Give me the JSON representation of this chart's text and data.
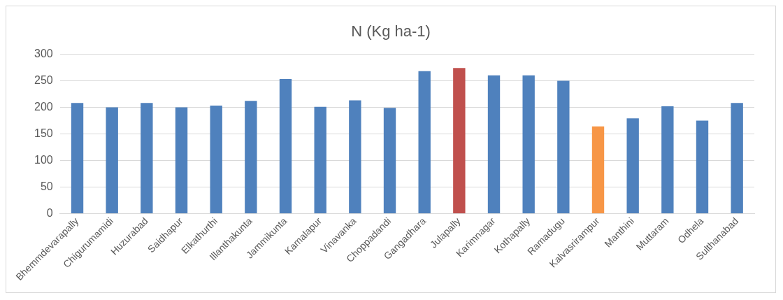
{
  "chart_data": {
    "type": "bar",
    "title": "N (Kg ha-1)",
    "categories": [
      "Bhemmdevarapally",
      "Chigurumamidi",
      "Huzurabad",
      "Saidhapur",
      "Elkathurthi",
      "Illanthakunta",
      "Jammikunta",
      "Kamalapur",
      "Vinavanka",
      "Choppadandi",
      "Gangadhara",
      "Julapally",
      "Karimnagar",
      "Kothapally",
      "Ramadugu",
      "Kalvasrirampur",
      "Manthini",
      "Muttaram",
      "Odhela",
      "Sulthanabad"
    ],
    "values": [
      208,
      200,
      208,
      200,
      203,
      212,
      253,
      201,
      213,
      199,
      268,
      274,
      260,
      260,
      250,
      164,
      179,
      202,
      175,
      208
    ],
    "colors": [
      "#4f81bd",
      "#4f81bd",
      "#4f81bd",
      "#4f81bd",
      "#4f81bd",
      "#4f81bd",
      "#4f81bd",
      "#4f81bd",
      "#4f81bd",
      "#4f81bd",
      "#4f81bd",
      "#c0504d",
      "#4f81bd",
      "#4f81bd",
      "#4f81bd",
      "#f79646",
      "#4f81bd",
      "#4f81bd",
      "#4f81bd",
      "#4f81bd"
    ],
    "ylim": [
      0,
      300
    ],
    "yticks": [
      0,
      50,
      100,
      150,
      200,
      250,
      300
    ],
    "grid": "y"
  }
}
